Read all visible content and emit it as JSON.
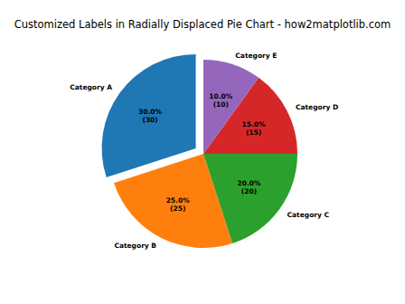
{
  "chart_data": {
    "type": "pie",
    "title": "Customized Labels in Radially Displaced Pie Chart - how2matplotlib.com",
    "categories": [
      "Category A",
      "Category B",
      "Category C",
      "Category D",
      "Category E"
    ],
    "values": [
      30,
      25,
      20,
      15,
      10
    ],
    "value_labels": [
      "30.0%\n(30)",
      "25.0%\n(25)",
      "20.0%\n(20)",
      "15.0%\n(15)",
      "10.0%\n(10)"
    ],
    "colors": [
      "#1f77b4",
      "#ff7f0e",
      "#2ca02c",
      "#d62728",
      "#9467bd"
    ],
    "data_labels": true
  }
}
